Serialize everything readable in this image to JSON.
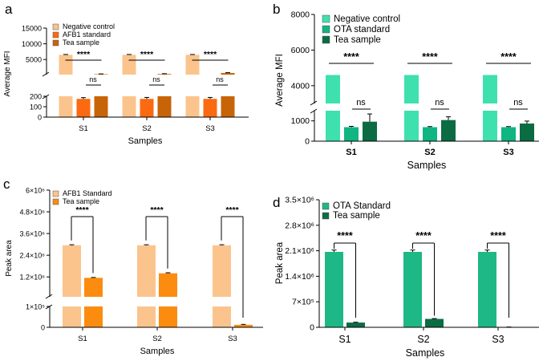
{
  "figure": {
    "panels": [
      "a",
      "b",
      "c",
      "d"
    ]
  },
  "chart_data": [
    {
      "panel": "a",
      "type": "bar",
      "ylabel": "Average MFI",
      "xlabel": "Samples",
      "categories": [
        "S1",
        "S2",
        "S3"
      ],
      "axis_break": {
        "lower_ylim": [
          0,
          200
        ],
        "upper_ylim": [
          200,
          15000
        ]
      },
      "y_ticks_lower": [
        "0",
        "100",
        "200"
      ],
      "y_ticks_upper": [
        "5000",
        "10000",
        "15000"
      ],
      "series": [
        {
          "name": "Negative control",
          "values": [
            6500,
            6500,
            6500
          ],
          "errors": [
            100,
            100,
            100
          ],
          "color": "#FBC48D"
        },
        {
          "name": "AFB1 standard",
          "values": [
            175,
            175,
            175
          ],
          "errors": [
            12,
            14,
            14
          ],
          "color": "#FB6A10"
        },
        {
          "name": "Tea sample",
          "values": [
            340,
            400,
            720
          ],
          "errors": [
            80,
            90,
            100
          ],
          "color": "#C86408"
        }
      ],
      "annotations": {
        "major": "****",
        "minor": "ns"
      }
    },
    {
      "panel": "b",
      "type": "bar",
      "ylabel": "Average MFI",
      "xlabel": "Samples",
      "categories": [
        "S1",
        "S2",
        "S3"
      ],
      "axis_break": {
        "lower_ylim": [
          0,
          1500
        ],
        "upper_ylim": [
          3000,
          8000
        ]
      },
      "y_ticks_lower": [
        "0",
        "1000"
      ],
      "y_ticks_upper": [
        "4000",
        "6000",
        "8000"
      ],
      "series": [
        {
          "name": "Negative control",
          "values": [
            4600,
            4600,
            4600
          ],
          "errors": [
            0,
            0,
            0
          ],
          "color": "#3EE0AE"
        },
        {
          "name": "OTA standard",
          "values": [
            690,
            690,
            690
          ],
          "errors": [
            40,
            30,
            30
          ],
          "color": "#10B581"
        },
        {
          "name": "Tea sample",
          "values": [
            960,
            1040,
            870
          ],
          "errors": [
            380,
            160,
            120
          ],
          "color": "#0B6C44"
        }
      ],
      "annotations": {
        "major": "****",
        "minor": "ns"
      }
    },
    {
      "panel": "c",
      "type": "bar",
      "ylabel": "Peak area",
      "xlabel": "Samples",
      "categories": [
        "S1",
        "S2",
        "S3"
      ],
      "axis_break": {
        "lower_ylim": [
          0,
          100000
        ],
        "upper_ylim": [
          100000,
          6000000
        ]
      },
      "y_ticks_lower": [
        "0",
        "1×10⁵"
      ],
      "y_ticks_upper": [
        "1.2×10⁶",
        "2.4×10⁶",
        "3.6×10⁶",
        "4.8×10⁶",
        "6×10⁶"
      ],
      "series": [
        {
          "name": "AFB1 Standard",
          "values": [
            2950000,
            2950000,
            2950000
          ],
          "errors": [
            30000,
            30000,
            30000
          ],
          "color": "#FBC48D"
        },
        {
          "name": "Tea sample",
          "values": [
            1150000,
            1400000,
            12000
          ],
          "errors": [
            20000,
            30000,
            2000
          ],
          "color": "#FB8C10"
        }
      ],
      "annotations": {
        "major": "****"
      }
    },
    {
      "panel": "d",
      "type": "bar",
      "ylabel": "Peak area",
      "xlabel": "Samples",
      "categories": [
        "S1",
        "S2",
        "S3"
      ],
      "ylim": [
        0,
        3500000
      ],
      "y_ticks": [
        "0",
        "7×10⁵",
        "1.4×10⁶",
        "2.1×10⁶",
        "2.8×10⁶",
        "3.5×10⁶"
      ],
      "series": [
        {
          "name": "OTA Standard",
          "values": [
            2070000,
            2070000,
            2070000
          ],
          "errors": [
            50000,
            50000,
            50000
          ],
          "color": "#1DB885"
        },
        {
          "name": "Tea sample",
          "values": [
            130000,
            230000,
            8000
          ],
          "errors": [
            10000,
            10000,
            1000
          ],
          "color": "#0B6C44"
        }
      ],
      "annotations": {
        "major": "****"
      }
    }
  ]
}
